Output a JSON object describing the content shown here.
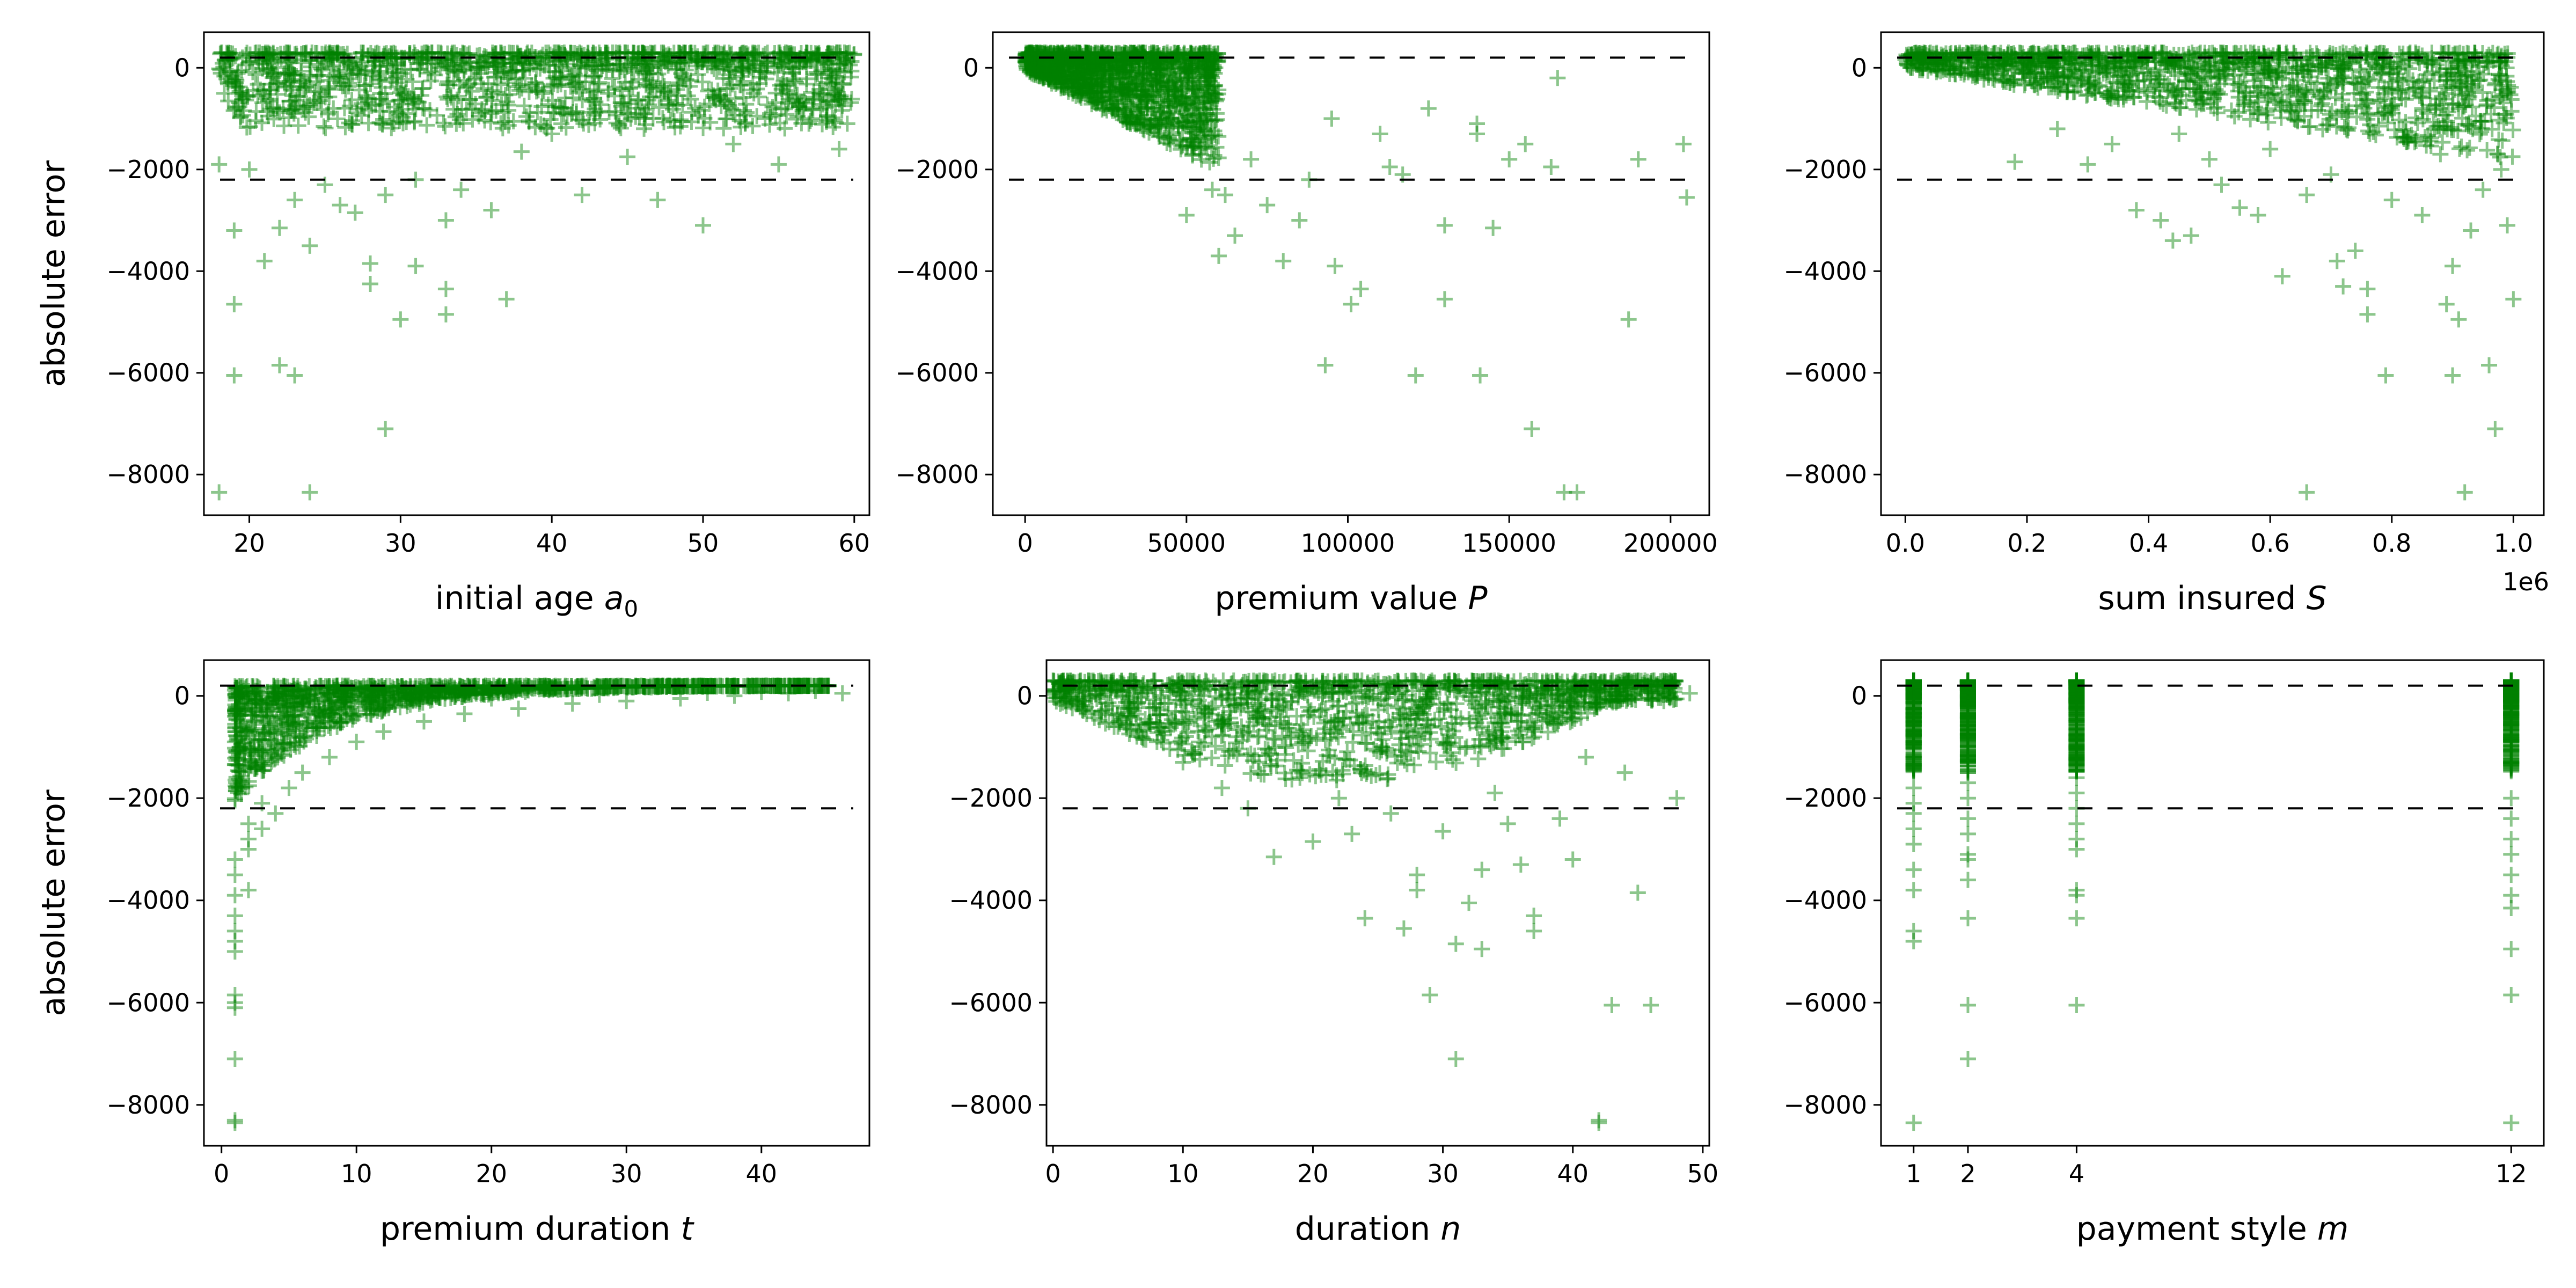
{
  "figure": {
    "y_axis_label": "absolute error",
    "marker_color": "#008000",
    "marker_alpha": 0.45,
    "reference_line_color": "#000000",
    "reference_lines_y": [
      200,
      -2200
    ]
  },
  "chart_data": [
    {
      "type": "scatter",
      "xlabel": "initial age",
      "xlabel_symbol": "a",
      "xlabel_subscript": "0",
      "ylabel": "absolute error",
      "xlim": [
        17,
        61
      ],
      "ylim": [
        -8800,
        700
      ],
      "xticks": [
        20,
        30,
        40,
        50,
        60
      ],
      "yticks": [
        0,
        -2000,
        -4000,
        -6000,
        -8000
      ],
      "reference_lines_y": [
        200,
        -2200
      ],
      "points": [
        {
          "x": 18,
          "y": -8350
        },
        {
          "x": 24,
          "y": -8350
        },
        {
          "x": 29,
          "y": -7100
        },
        {
          "x": 22,
          "y": -5850
        },
        {
          "x": 23,
          "y": -6050
        },
        {
          "x": 19,
          "y": -6050
        },
        {
          "x": 30,
          "y": -4950
        },
        {
          "x": 19,
          "y": -4650
        },
        {
          "x": 33,
          "y": -4850
        },
        {
          "x": 37,
          "y": -4550
        },
        {
          "x": 33,
          "y": -4350
        },
        {
          "x": 28,
          "y": -4250
        },
        {
          "x": 31,
          "y": -3900
        },
        {
          "x": 21,
          "y": -3800
        },
        {
          "x": 28,
          "y": -3850
        },
        {
          "x": 24,
          "y": -3500
        },
        {
          "x": 19,
          "y": -3200
        },
        {
          "x": 22,
          "y": -3150
        },
        {
          "x": 29,
          "y": -2500
        },
        {
          "x": 50,
          "y": -3100
        },
        {
          "x": 36,
          "y": -2800
        },
        {
          "x": 26,
          "y": -2700
        },
        {
          "x": 42,
          "y": -2500
        },
        {
          "x": 47,
          "y": -2600
        },
        {
          "x": 34,
          "y": -2400
        },
        {
          "x": 55,
          "y": -1900
        },
        {
          "x": 59,
          "y": -1600
        },
        {
          "x": 45,
          "y": -1750
        },
        {
          "x": 38,
          "y": -1650
        },
        {
          "x": 52,
          "y": -1500
        },
        {
          "x": 20,
          "y": -2000
        },
        {
          "x": 25,
          "y": -2300
        },
        {
          "x": 31,
          "y": -2200
        },
        {
          "x": 40,
          "y": -1300
        },
        {
          "x": 27,
          "y": -2850
        },
        {
          "x": 33,
          "y": -3000
        },
        {
          "x": 18,
          "y": -1900
        },
        {
          "x": 23,
          "y": -2600
        },
        {
          "x": 45,
          "y": -900
        },
        {
          "x": 57,
          "y": -1100
        }
      ],
      "density_band": {
        "x_range": [
          18,
          60
        ],
        "y_range": [
          -1200,
          300
        ]
      }
    },
    {
      "type": "scatter",
      "xlabel": "premium value",
      "xlabel_symbol": "P",
      "ylabel": "",
      "xlim": [
        -10000,
        212000
      ],
      "ylim": [
        -8800,
        700
      ],
      "xticks": [
        0,
        50000,
        100000,
        150000,
        200000
      ],
      "yticks": [
        0,
        -2000,
        -4000,
        -6000,
        -8000
      ],
      "reference_lines_y": [
        200,
        -2200
      ],
      "points": [
        {
          "x": 167000,
          "y": -8350
        },
        {
          "x": 171000,
          "y": -8350
        },
        {
          "x": 157000,
          "y": -7100
        },
        {
          "x": 121000,
          "y": -6050
        },
        {
          "x": 141000,
          "y": -6050
        },
        {
          "x": 93000,
          "y": -5850
        },
        {
          "x": 187000,
          "y": -4950
        },
        {
          "x": 101000,
          "y": -4650
        },
        {
          "x": 130000,
          "y": -4550
        },
        {
          "x": 104000,
          "y": -4350
        },
        {
          "x": 96000,
          "y": -3900
        },
        {
          "x": 80000,
          "y": -3800
        },
        {
          "x": 60000,
          "y": -3700
        },
        {
          "x": 145000,
          "y": -3150
        },
        {
          "x": 130000,
          "y": -3100
        },
        {
          "x": 205000,
          "y": -2550
        },
        {
          "x": 117000,
          "y": -2100
        },
        {
          "x": 113000,
          "y": -1950
        },
        {
          "x": 163000,
          "y": -1950
        },
        {
          "x": 190000,
          "y": -1800
        },
        {
          "x": 204000,
          "y": -1500
        },
        {
          "x": 140000,
          "y": -1300
        },
        {
          "x": 155000,
          "y": -1500
        },
        {
          "x": 150000,
          "y": -1800
        },
        {
          "x": 165000,
          "y": -200
        },
        {
          "x": 140000,
          "y": -1100
        },
        {
          "x": 125000,
          "y": -800
        },
        {
          "x": 110000,
          "y": -1300
        },
        {
          "x": 95000,
          "y": -1000
        },
        {
          "x": 88000,
          "y": -2200
        },
        {
          "x": 75000,
          "y": -2700
        },
        {
          "x": 65000,
          "y": -3300
        },
        {
          "x": 85000,
          "y": -3000
        },
        {
          "x": 70000,
          "y": -1800
        },
        {
          "x": 58000,
          "y": -2400
        },
        {
          "x": 50000,
          "y": -2900
        },
        {
          "x": 45000,
          "y": -1500
        },
        {
          "x": 40000,
          "y": -1200
        },
        {
          "x": 35000,
          "y": -1100
        },
        {
          "x": 62000,
          "y": -2500
        }
      ],
      "density_band": {
        "shape": "wedge",
        "x_range": [
          0,
          60000
        ],
        "y_range": [
          -2000,
          300
        ]
      }
    },
    {
      "type": "scatter",
      "xlabel": "sum insured",
      "xlabel_symbol": "S",
      "ylabel": "",
      "xlim": [
        -0.04,
        1.05
      ],
      "ylim": [
        -8800,
        700
      ],
      "xticks": [
        0.0,
        0.2,
        0.4,
        0.6,
        0.8,
        1.0
      ],
      "xtick_labels": [
        "0.0",
        "0.2",
        "0.4",
        "0.6",
        "0.8",
        "1.0"
      ],
      "x_offset_label": "1e6",
      "yticks": [
        0,
        -2000,
        -4000,
        -6000,
        -8000
      ],
      "reference_lines_y": [
        200,
        -2200
      ],
      "points": [
        {
          "x": 0.66,
          "y": -8350
        },
        {
          "x": 0.92,
          "y": -8350
        },
        {
          "x": 0.97,
          "y": -7100
        },
        {
          "x": 0.79,
          "y": -6050
        },
        {
          "x": 0.9,
          "y": -6050
        },
        {
          "x": 0.96,
          "y": -5850
        },
        {
          "x": 0.91,
          "y": -4950
        },
        {
          "x": 0.89,
          "y": -4650
        },
        {
          "x": 1.0,
          "y": -4550
        },
        {
          "x": 0.76,
          "y": -4850
        },
        {
          "x": 0.72,
          "y": -4300
        },
        {
          "x": 0.76,
          "y": -4350
        },
        {
          "x": 0.62,
          "y": -4100
        },
        {
          "x": 0.71,
          "y": -3800
        },
        {
          "x": 0.74,
          "y": -3600
        },
        {
          "x": 0.9,
          "y": -3900
        },
        {
          "x": 0.44,
          "y": -3400
        },
        {
          "x": 0.42,
          "y": -3000
        },
        {
          "x": 0.47,
          "y": -3300
        },
        {
          "x": 0.38,
          "y": -2800
        },
        {
          "x": 0.55,
          "y": -2750
        },
        {
          "x": 0.58,
          "y": -2900
        },
        {
          "x": 0.66,
          "y": -2500
        },
        {
          "x": 0.8,
          "y": -2600
        },
        {
          "x": 0.85,
          "y": -2900
        },
        {
          "x": 0.93,
          "y": -3200
        },
        {
          "x": 0.99,
          "y": -3100
        },
        {
          "x": 0.18,
          "y": -1850
        },
        {
          "x": 0.3,
          "y": -1900
        },
        {
          "x": 0.5,
          "y": -1800
        },
        {
          "x": 0.52,
          "y": -2300
        },
        {
          "x": 0.7,
          "y": -2100
        },
        {
          "x": 0.95,
          "y": -2400
        },
        {
          "x": 0.98,
          "y": -2000
        },
        {
          "x": 0.34,
          "y": -1500
        },
        {
          "x": 0.6,
          "y": -1600
        },
        {
          "x": 0.25,
          "y": -1200
        },
        {
          "x": 0.45,
          "y": -1300
        },
        {
          "x": 0.88,
          "y": -1700
        },
        {
          "x": 0.82,
          "y": -1400
        }
      ],
      "density_band": {
        "shape": "wedge",
        "x_range": [
          0,
          1.0
        ],
        "y_range": [
          -1800,
          300
        ]
      }
    },
    {
      "type": "scatter",
      "xlabel": "premium duration",
      "xlabel_symbol": "t",
      "ylabel": "absolute error",
      "xlim": [
        -1.3,
        48
      ],
      "ylim": [
        -8800,
        700
      ],
      "xticks": [
        0,
        10,
        20,
        30,
        40
      ],
      "yticks": [
        0,
        -2000,
        -4000,
        -6000,
        -8000
      ],
      "reference_lines_y": [
        200,
        -2200
      ],
      "points": [
        {
          "x": 1,
          "y": -8350
        },
        {
          "x": 1,
          "y": -8300
        },
        {
          "x": 1,
          "y": -7100
        },
        {
          "x": 1,
          "y": -6100
        },
        {
          "x": 1,
          "y": -6000
        },
        {
          "x": 1,
          "y": -5850
        },
        {
          "x": 1,
          "y": -5000
        },
        {
          "x": 1,
          "y": -4800
        },
        {
          "x": 1,
          "y": -4600
        },
        {
          "x": 1,
          "y": -4300
        },
        {
          "x": 1,
          "y": -3900
        },
        {
          "x": 2,
          "y": -3800
        },
        {
          "x": 1,
          "y": -3500
        },
        {
          "x": 1,
          "y": -3200
        },
        {
          "x": 2,
          "y": -3000
        },
        {
          "x": 2,
          "y": -2800
        },
        {
          "x": 3,
          "y": -2600
        },
        {
          "x": 2,
          "y": -2500
        },
        {
          "x": 4,
          "y": -2300
        },
        {
          "x": 3,
          "y": -2100
        },
        {
          "x": 5,
          "y": -1800
        },
        {
          "x": 6,
          "y": -1500
        },
        {
          "x": 8,
          "y": -1200
        },
        {
          "x": 10,
          "y": -900
        },
        {
          "x": 12,
          "y": -700
        },
        {
          "x": 15,
          "y": -500
        },
        {
          "x": 18,
          "y": -350
        },
        {
          "x": 22,
          "y": -250
        },
        {
          "x": 26,
          "y": -150
        },
        {
          "x": 30,
          "y": -100
        },
        {
          "x": 34,
          "y": -50
        },
        {
          "x": 38,
          "y": 0
        },
        {
          "x": 42,
          "y": 50
        },
        {
          "x": 45,
          "y": 200
        },
        {
          "x": 46,
          "y": 50
        },
        {
          "x": 44,
          "y": 100
        },
        {
          "x": 40,
          "y": 80
        },
        {
          "x": 36,
          "y": 60
        },
        {
          "x": 28,
          "y": 20
        },
        {
          "x": 20,
          "y": -50
        }
      ],
      "density_band": {
        "shape": "decay",
        "x_range": [
          1,
          45
        ],
        "y_range": [
          -2000,
          300
        ]
      }
    },
    {
      "type": "scatter",
      "xlabel": "duration",
      "xlabel_symbol": "n",
      "ylabel": "",
      "xlim": [
        -0.5,
        50.5
      ],
      "ylim": [
        -8800,
        700
      ],
      "xticks": [
        0,
        10,
        20,
        30,
        40,
        50
      ],
      "yticks": [
        0,
        -2000,
        -4000,
        -6000,
        -8000
      ],
      "reference_lines_y": [
        200,
        -2200
      ],
      "points": [
        {
          "x": 42,
          "y": -8350
        },
        {
          "x": 42,
          "y": -8300
        },
        {
          "x": 31,
          "y": -7100
        },
        {
          "x": 43,
          "y": -6050
        },
        {
          "x": 46,
          "y": -6050
        },
        {
          "x": 29,
          "y": -5850
        },
        {
          "x": 33,
          "y": -4950
        },
        {
          "x": 31,
          "y": -4850
        },
        {
          "x": 27,
          "y": -4550
        },
        {
          "x": 37,
          "y": -4600
        },
        {
          "x": 24,
          "y": -4350
        },
        {
          "x": 37,
          "y": -4300
        },
        {
          "x": 32,
          "y": -4050
        },
        {
          "x": 28,
          "y": -3800
        },
        {
          "x": 45,
          "y": -3850
        },
        {
          "x": 33,
          "y": -3400
        },
        {
          "x": 36,
          "y": -3300
        },
        {
          "x": 28,
          "y": -3500
        },
        {
          "x": 40,
          "y": -3200
        },
        {
          "x": 17,
          "y": -3150
        },
        {
          "x": 20,
          "y": -2850
        },
        {
          "x": 23,
          "y": -2700
        },
        {
          "x": 30,
          "y": -2650
        },
        {
          "x": 35,
          "y": -2500
        },
        {
          "x": 48,
          "y": -2000
        },
        {
          "x": 15,
          "y": -2200
        },
        {
          "x": 26,
          "y": -2300
        },
        {
          "x": 39,
          "y": -2400
        },
        {
          "x": 13,
          "y": -1800
        },
        {
          "x": 22,
          "y": -2000
        },
        {
          "x": 44,
          "y": -1500
        },
        {
          "x": 10,
          "y": -1300
        },
        {
          "x": 8,
          "y": -900
        },
        {
          "x": 5,
          "y": -600
        },
        {
          "x": 3,
          "y": -300
        },
        {
          "x": 47,
          "y": -100
        },
        {
          "x": 49,
          "y": 50
        },
        {
          "x": 19,
          "y": -1600
        },
        {
          "x": 34,
          "y": -1900
        },
        {
          "x": 41,
          "y": -1200
        }
      ],
      "density_band": {
        "shape": "belly",
        "x_range": [
          0,
          48
        ],
        "y_range": [
          -1700,
          300
        ]
      }
    },
    {
      "type": "scatter",
      "xlabel": "payment style",
      "xlabel_symbol": "m",
      "ylabel": "",
      "xlim": [
        0.4,
        12.6
      ],
      "ylim": [
        -8800,
        700
      ],
      "xticks": [
        1,
        2,
        4,
        12
      ],
      "yticks": [
        0,
        -2000,
        -4000,
        -6000,
        -8000
      ],
      "reference_lines_y": [
        200,
        -2200
      ],
      "points": [
        {
          "x": 1,
          "y": -8350
        },
        {
          "x": 1,
          "y": -4800
        },
        {
          "x": 1,
          "y": -4600
        },
        {
          "x": 1,
          "y": -3800
        },
        {
          "x": 1,
          "y": -3400
        },
        {
          "x": 1,
          "y": -2900
        },
        {
          "x": 1,
          "y": -2600
        },
        {
          "x": 1,
          "y": -2300
        },
        {
          "x": 1,
          "y": -2100
        },
        {
          "x": 1,
          "y": -1800
        },
        {
          "x": 2,
          "y": -7100
        },
        {
          "x": 2,
          "y": -6050
        },
        {
          "x": 2,
          "y": -4350
        },
        {
          "x": 2,
          "y": -3600
        },
        {
          "x": 2,
          "y": -3200
        },
        {
          "x": 2,
          "y": -3100
        },
        {
          "x": 2,
          "y": -2700
        },
        {
          "x": 2,
          "y": -2400
        },
        {
          "x": 2,
          "y": -2000
        },
        {
          "x": 2,
          "y": -1700
        },
        {
          "x": 4,
          "y": -6050
        },
        {
          "x": 4,
          "y": -4350
        },
        {
          "x": 4,
          "y": -3900
        },
        {
          "x": 4,
          "y": -3800
        },
        {
          "x": 4,
          "y": -3000
        },
        {
          "x": 4,
          "y": -2800
        },
        {
          "x": 4,
          "y": -2500
        },
        {
          "x": 4,
          "y": -2200
        },
        {
          "x": 4,
          "y": -1900
        },
        {
          "x": 4,
          "y": -1600
        },
        {
          "x": 12,
          "y": -8350
        },
        {
          "x": 12,
          "y": -5850
        },
        {
          "x": 12,
          "y": -4950
        },
        {
          "x": 12,
          "y": -4150
        },
        {
          "x": 12,
          "y": -3900
        },
        {
          "x": 12,
          "y": -3500
        },
        {
          "x": 12,
          "y": -3100
        },
        {
          "x": 12,
          "y": -2800
        },
        {
          "x": 12,
          "y": -2400
        },
        {
          "x": 12,
          "y": -2000
        }
      ],
      "density_band": {
        "shape": "columns",
        "columns": [
          1,
          2,
          4,
          12
        ],
        "y_range": [
          -1500,
          300
        ]
      }
    }
  ]
}
